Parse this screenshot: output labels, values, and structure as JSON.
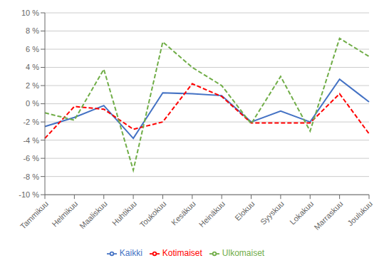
{
  "chart_data": {
    "type": "line",
    "categories": [
      "Tammikuu",
      "Helmikuu",
      "Maaliskuu",
      "Huhtikuu",
      "Toukokuu",
      "Kesäkuu",
      "Heinäkuu",
      "Elokuu",
      "Syyskuu",
      "Lokakuu",
      "Marraskuu",
      "Joulukuu"
    ],
    "series": [
      {
        "name": "Kaikki",
        "color": "#4472C4",
        "line_style": "solid",
        "values": [
          -2.5,
          -1.5,
          -0.2,
          -3.8,
          1.2,
          1.1,
          0.9,
          -2.0,
          -0.8,
          -2.0,
          2.7,
          0.2
        ]
      },
      {
        "name": "Kotimaiset",
        "color": "#FF0000",
        "line_style": "dashed",
        "values": [
          -3.8,
          -0.3,
          -0.6,
          -2.8,
          -2.0,
          2.2,
          0.8,
          -2.1,
          -2.1,
          -2.1,
          1.1,
          -3.3
        ]
      },
      {
        "name": "Ulkomaiset",
        "color": "#70AD47",
        "line_style": "dashed",
        "values": [
          -1.0,
          -1.8,
          3.8,
          -7.3,
          6.8,
          4.0,
          2.0,
          -2.2,
          3.0,
          -3.0,
          7.2,
          5.2
        ]
      }
    ],
    "ylim": [
      -10,
      10
    ],
    "yticks": [
      {
        "value": -10,
        "label": "-10 %"
      },
      {
        "value": -8,
        "label": "-8 %"
      },
      {
        "value": -6,
        "label": "-6 %"
      },
      {
        "value": -4,
        "label": "-4 %"
      },
      {
        "value": -2,
        "label": "-2 %"
      },
      {
        "value": 0,
        "label": "0 %"
      },
      {
        "value": 2,
        "label": "2 %"
      },
      {
        "value": 4,
        "label": "4 %"
      },
      {
        "value": 6,
        "label": "6 %"
      },
      {
        "value": 8,
        "label": "8 %"
      },
      {
        "value": 10,
        "label": "10 %"
      }
    ],
    "grid": true,
    "legend": "bottom"
  }
}
